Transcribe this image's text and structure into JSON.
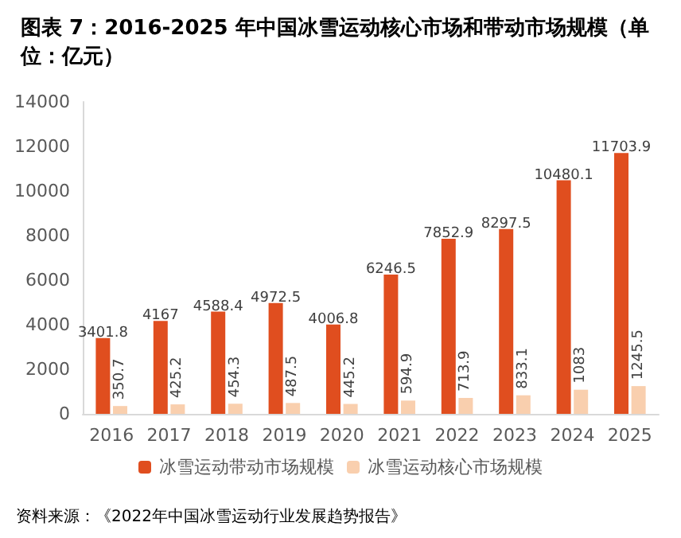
{
  "chart_data": {
    "type": "bar",
    "title": "图表 7：2016-2025 年中国冰雪运动核心市场和带动市场规模（单位：亿元）",
    "categories": [
      "2016",
      "2017",
      "2018",
      "2019",
      "2020",
      "2021",
      "2022",
      "2023",
      "2024",
      "2025"
    ],
    "series": [
      {
        "name": "冰雪运动带动市场规模",
        "color": "#e04e1f",
        "values": [
          3401.8,
          4167,
          4588.4,
          4972.5,
          4006.8,
          6246.5,
          7852.9,
          8297.5,
          10480.1,
          11703.9
        ]
      },
      {
        "name": "冰雪运动核心市场规模",
        "color": "#f9cfae",
        "values": [
          350.7,
          425.2,
          454.3,
          487.5,
          445.2,
          594.9,
          713.9,
          833.1,
          1083,
          1245.5
        ]
      }
    ],
    "ylim": [
      0,
      14000
    ],
    "yticks": [
      0,
      2000,
      4000,
      6000,
      8000,
      10000,
      12000,
      14000
    ],
    "data_labels": true,
    "grid": false,
    "legend": "bottom",
    "annotations": [
      "资料来源：《2022年中国冰雪运动行业发展趋势报告》"
    ]
  }
}
